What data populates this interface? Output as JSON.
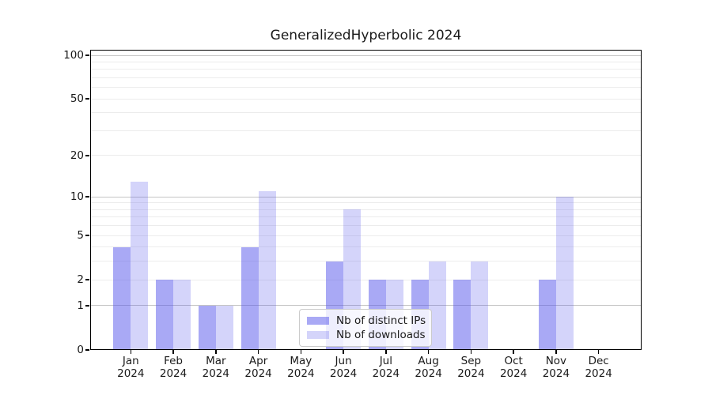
{
  "chart_data": {
    "type": "bar",
    "title": "GeneralizedHyperbolic 2024",
    "scale": "log1p",
    "grid": true,
    "legend_position": "bottom-center",
    "categories": [
      "Jan 2024",
      "Feb 2024",
      "Mar 2024",
      "Apr 2024",
      "May 2024",
      "Jun 2024",
      "Jul 2024",
      "Aug 2024",
      "Sep 2024",
      "Oct 2024",
      "Nov 2024",
      "Dec 2024"
    ],
    "series": [
      {
        "name": "Nb of distinct IPs",
        "color": "#5353eb",
        "alpha": 0.5,
        "effective_color": "#a9a9f5",
        "values": [
          4,
          2,
          1,
          4,
          0,
          3,
          2,
          2,
          2,
          0,
          2,
          0
        ]
      },
      {
        "name": "Nb of downloads",
        "color": "#5353eb",
        "alpha": 0.25,
        "effective_color": "#d8d8f5",
        "values": [
          13,
          2,
          1,
          11,
          0,
          8,
          2,
          3,
          3,
          0,
          10,
          0
        ]
      }
    ],
    "yaxis": {
      "tick_values": [
        0,
        1,
        2,
        5,
        10,
        20,
        50,
        100
      ],
      "tick_labels": [
        "0",
        "1",
        "2",
        "5",
        "10",
        "20",
        "50",
        "100"
      ],
      "major_gridlines": [
        1,
        10,
        100
      ],
      "minor_gridlines": [
        2,
        3,
        4,
        5,
        6,
        7,
        8,
        9,
        20,
        30,
        40,
        50,
        60,
        70,
        80,
        90
      ],
      "ylim": [
        0,
        109
      ]
    },
    "legend": {
      "entries": [
        "Nb of distinct IPs",
        "Nb of downloads"
      ]
    }
  },
  "colors": {
    "minor_grid": "#ececec",
    "major_grid": "#c4c4c4",
    "spine": "#000000",
    "text": "#1a1a1a",
    "legend_border": "#cbcbcb"
  }
}
